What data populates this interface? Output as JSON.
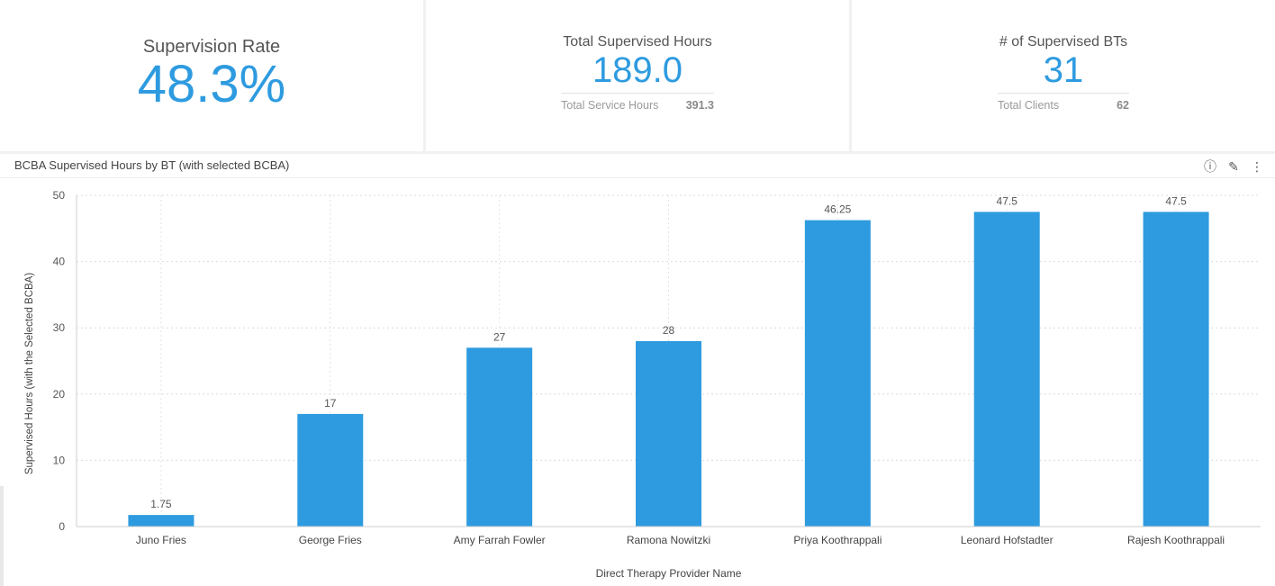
{
  "kpis": {
    "rate": {
      "label": "Supervision Rate",
      "value": "48.3%"
    },
    "hours": {
      "label": "Total Supervised Hours",
      "value": "189.0",
      "sub_label": "Total Service Hours",
      "sub_value": "391.3"
    },
    "bts": {
      "label": "# of Supervised BTs",
      "value": "31",
      "sub_label": "Total Clients",
      "sub_value": "62"
    }
  },
  "panel": {
    "icons": [
      "info-icon",
      "edit-icon",
      "more-icon"
    ]
  },
  "colors": {
    "bar": "#2e9be0",
    "accent": "#2e9be0"
  },
  "chart_data": {
    "type": "bar",
    "title": "BCBA Supervised Hours by BT (with selected BCBA)",
    "xlabel": "Direct Therapy Provider Name",
    "ylabel": "Supervised Hours (with the Selected BCBA)",
    "ylim": [
      0,
      50
    ],
    "yticks": [
      0,
      10,
      20,
      30,
      40,
      50
    ],
    "grid": true,
    "categories": [
      "Juno Fries",
      "George Fries",
      "Amy Farrah Fowler",
      "Ramona Nowitzki",
      "Priya Koothrappali",
      "Leonard Hofstadter",
      "Rajesh Koothrappali"
    ],
    "values": [
      1.75,
      17,
      27,
      28,
      46.25,
      47.5,
      47.5
    ],
    "data_labels": [
      "1.75",
      "17",
      "27",
      "28",
      "46.25",
      "47.5",
      "47.5"
    ]
  }
}
